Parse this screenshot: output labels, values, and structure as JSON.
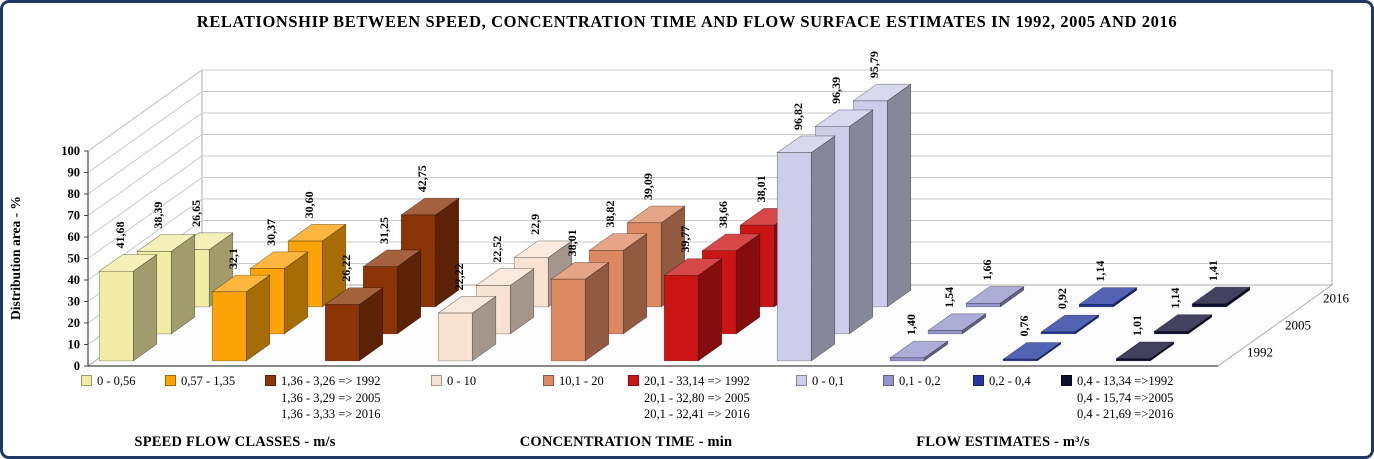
{
  "title": "RELATIONSHIP BETWEEN SPEED, CONCENTRATION TIME AND FLOW SURFACE ESTIMATES IN 1992, 2005 AND 2016",
  "frame": {
    "border_color": "#203864"
  },
  "chart_data": {
    "type": "bar",
    "variant": "3d-clustered-column",
    "ylabel": "Distribution area - %",
    "ylim": [
      0,
      100
    ],
    "ytick_step": 10,
    "grid": true,
    "legend_position": "bottom",
    "depth_series": [
      "1992",
      "2005",
      "2016"
    ],
    "groups": [
      {
        "label": "SPEED FLOW CLASSES - m/s",
        "categories": [
          {
            "legend": "0 - 0,56",
            "color": "#F2ECA4",
            "values": [
              41.68,
              38.39,
              26.65
            ],
            "value_labels": [
              "41,68",
              "38,39",
              "26,65"
            ]
          },
          {
            "legend": "0,57 - 1,35",
            "color": "#FCA308",
            "values": [
              32.1,
              30.37,
              30.6
            ],
            "value_labels": [
              "32,1",
              "30,37",
              "30,60"
            ]
          },
          {
            "legend": "1,36 - 3,26 => 1992\n1,36 - 3,29 => 2005\n1,36 - 3,33 => 2016",
            "color": "#8A3408",
            "values": [
              26.22,
              31.25,
              42.75
            ],
            "value_labels": [
              "26,22",
              "31,25",
              "42,75"
            ]
          }
        ]
      },
      {
        "label": "CONCENTRATION TIME - min",
        "categories": [
          {
            "legend": "0 - 10",
            "color": "#F8E3D3",
            "values": [
              22.22,
              22.52,
              22.9
            ],
            "value_labels": [
              "22,22",
              "22,52",
              "22,9"
            ]
          },
          {
            "legend": "10,1 - 20",
            "color": "#DD8A62",
            "values": [
              38.01,
              38.82,
              39.09
            ],
            "value_labels": [
              "38,01",
              "38,82",
              "39,09"
            ]
          },
          {
            "legend": "20,1 - 33,14 => 1992\n20,1 - 32,80 => 2005\n20,1 - 32,41 => 2016",
            "color": "#CB1414",
            "values": [
              39.77,
              38.66,
              38.01
            ],
            "value_labels": [
              "39,77",
              "38,66",
              "38,01"
            ]
          }
        ]
      },
      {
        "label": "FLOW ESTIMATES - m³/s",
        "categories": [
          {
            "legend": "0 - 0,1",
            "color": "#CDCDEA",
            "values": [
              96.82,
              96.39,
              95.79
            ],
            "value_labels": [
              "96,82",
              "96,39",
              "95,79"
            ]
          },
          {
            "legend": "0,1 - 0,2",
            "color": "#9595CC",
            "values": [
              1.4,
              1.54,
              1.66
            ],
            "value_labels": [
              "1,40",
              "1,54",
              "1,66"
            ]
          },
          {
            "legend": "0,2 - 0,4",
            "color": "#23379E",
            "values": [
              0.76,
              0.92,
              1.14
            ],
            "value_labels": [
              "0,76",
              "0,92",
              "1,14"
            ]
          },
          {
            "legend": "0,4 - 13,34 =>1992\n0,4 - 15,74 =>2005\n0,4 - 21,69 =>2016",
            "color": "#0D0D30",
            "values": [
              1.01,
              1.14,
              1.41
            ],
            "value_labels": [
              "1,01",
              "1,14",
              "1,41"
            ]
          }
        ]
      }
    ]
  }
}
